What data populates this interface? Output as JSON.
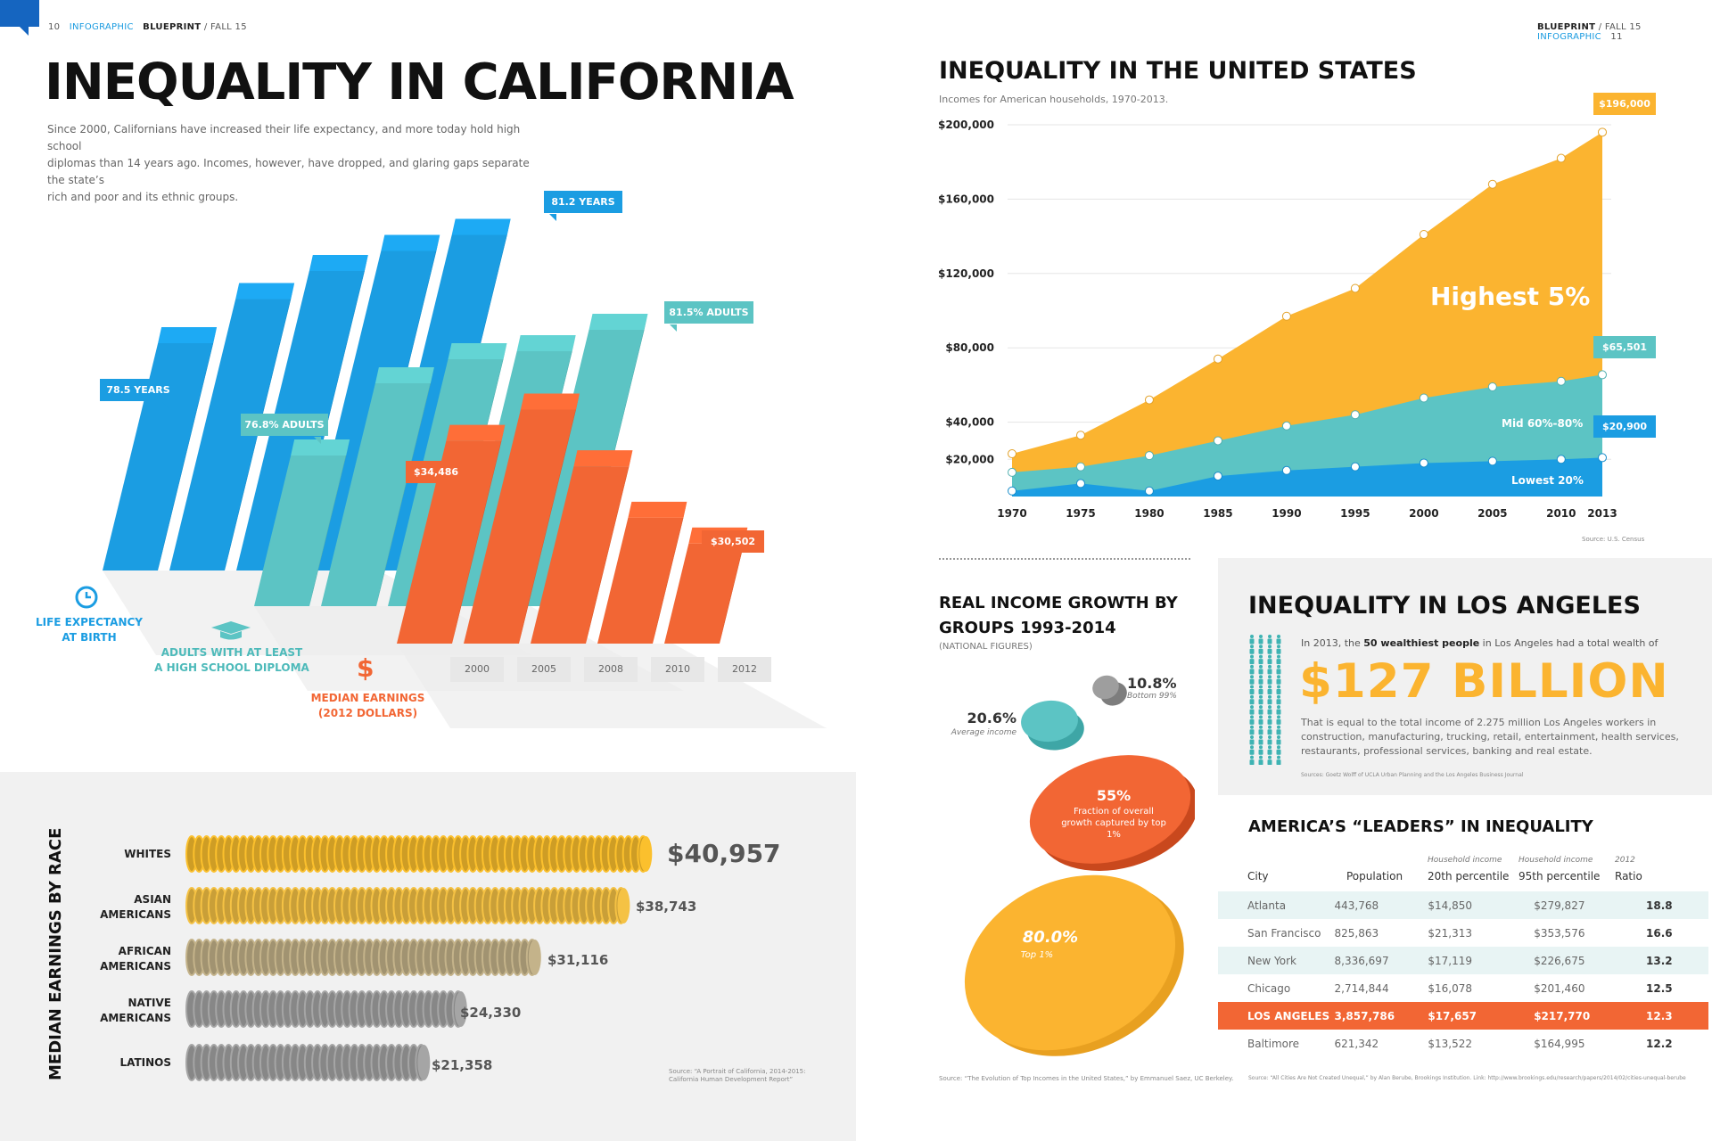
{
  "left_header": {
    "page": "10",
    "section": "INFOGRAPHIC",
    "mag": "BLUEPRINT",
    "issue": "/ FALL 15"
  },
  "right_header": {
    "mag": "BLUEPRINT",
    "issue": "/ FALL 15",
    "section": "INFOGRAPHIC",
    "page": "11"
  },
  "ca": {
    "title": "INEQUALITY IN CALIFORNIA",
    "intro_1": "Since 2000, Californians have increased their life expectancy, and more today hold high school",
    "intro_2": "diplomas than 14 years ago. Incomes, however, have dropped, and glaring gaps separate the state’s",
    "intro_3": "rich and poor and its ethnic groups.",
    "callouts": {
      "life_first": "78.5 YEARS",
      "life_last": "81.2 YEARS",
      "hs_first": "76.8% ADULTS",
      "hs_last": "81.5% ADULTS",
      "earn_first": "$34,486",
      "earn_last": "$30,502"
    },
    "legend": {
      "life": [
        "LIFE EXPECTANCY",
        "AT BIRTH"
      ],
      "hs": [
        "ADULTS WITH AT LEAST",
        "A HIGH SCHOOL DIPLOMA"
      ],
      "earn": [
        "MEDIAN EARNINGS",
        "(2012 DOLLARS)"
      ]
    },
    "years": [
      "2000",
      "2005",
      "2008",
      "2010",
      "2012"
    ]
  },
  "race": {
    "title": "MEDIAN EARNINGS BY RACE",
    "rows": [
      {
        "label": [
          "WHITES"
        ],
        "value": "$40,957"
      },
      {
        "label": [
          "ASIAN",
          "AMERICANS"
        ],
        "value": "$38,743"
      },
      {
        "label": [
          "AFRICAN",
          "AMERICANS"
        ],
        "value": "$31,116"
      },
      {
        "label": [
          "NATIVE",
          "AMERICANS"
        ],
        "value": "$24,330"
      },
      {
        "label": [
          "LATINOS"
        ],
        "value": "$21,358"
      }
    ],
    "source": [
      "Source: “A Portrait of California, 2014-2015:",
      "California Human Development Report”"
    ]
  },
  "us": {
    "title": "INEQUALITY IN THE UNITED STATES",
    "subtitle": "Incomes for American households, 1970-2013.",
    "source": "Source: U.S. Census",
    "labels": {
      "top": "Highest 5%",
      "mid": "Mid 60%-80%",
      "low": "Lowest 20%"
    },
    "callouts": {
      "top": "$196,000",
      "mid": "$65,501",
      "low": "$20,900"
    }
  },
  "growth": {
    "title_1": "REAL INCOME GROWTH BY",
    "title_2": "GROUPS 1993-2014",
    "subtitle": "(NATIONAL FIGURES)",
    "items": [
      {
        "value": "10.8%",
        "label": "Bottom 99%"
      },
      {
        "value": "20.6%",
        "label": "Average income"
      },
      {
        "value": "55%",
        "label": "Fraction of overall growth captured by top 1%"
      },
      {
        "value": "80.0%",
        "label": "Top 1%"
      }
    ],
    "source": "Source: “The Evolution of Top Incomes in the United States,” by Emmanuel Saez, UC Berkeley."
  },
  "la": {
    "title": "INEQUALITY IN LOS ANGELES",
    "line_pre": "In 2013, the",
    "line_bold": "50 wealthiest people",
    "line_post": "in Los Angeles had a total wealth of",
    "big": "$127 BILLION",
    "desc_1": "That is equal to the total income of 2.275 million Los Angeles workers in",
    "desc_2": "construction, manufacturing, trucking, retail, entertainment, health services,",
    "desc_3": "restaurants, professional services, banking and real estate.",
    "source": "Sources: Goetz Wolff of UCLA Urban Planning and the Los Angeles Business Journal"
  },
  "leaders": {
    "title": "AMERICA’S “LEADERS” IN INEQUALITY",
    "headers": {
      "city": "City",
      "pop": "Population",
      "p20_top": "Household income",
      "p20": "20th percentile",
      "p95_top": "Household income",
      "p95": "95th percentile",
      "ratio_top": "2012",
      "ratio": "Ratio"
    },
    "rows": [
      [
        "Atlanta",
        "443,768",
        "$14,850",
        "$279,827",
        "18.8"
      ],
      [
        "San Francisco",
        "825,863",
        "$21,313",
        "$353,576",
        "16.6"
      ],
      [
        "New York",
        "8,336,697",
        "$17,119",
        "$226,675",
        "13.2"
      ],
      [
        "Chicago",
        "2,714,844",
        "$16,078",
        "$201,460",
        "12.5"
      ],
      [
        "LOS ANGELES",
        "3,857,786",
        "$17,657",
        "$217,770",
        "12.3"
      ],
      [
        "Baltimore",
        "621,342",
        "$13,522",
        "$164,995",
        "12.2"
      ]
    ],
    "source": "Source: “All Cities Are Not Created Unequal,” by Alan Berube, Brookings Institution. Link: http://www.brookings.edu/research/papers/2014/02/cities-unequal-berube"
  },
  "chart_data": [
    {
      "type": "bar",
      "categories": [
        "2000",
        "2005",
        "2008",
        "2010",
        "2012"
      ],
      "series": [
        {
          "name": "LIFE EXPECTANCY AT BIRTH",
          "values": [
            78.5,
            79.6,
            80.3,
            80.8,
            81.2
          ],
          "color": "#1b9de2"
        },
        {
          "name": "ADULTS WITH AT LEAST A HIGH SCHOOL DIPLOMA",
          "values": [
            76.8,
            79.5,
            80.4,
            80.7,
            81.5
          ],
          "color": "#5cc4c4"
        },
        {
          "name": "MEDIAN EARNINGS (2012 DOLLARS)",
          "values": [
            34486,
            35700,
            33500,
            31500,
            30502
          ],
          "color": "#f26634"
        }
      ]
    },
    {
      "type": "bar",
      "title": "MEDIAN EARNINGS BY RACE",
      "categories": [
        "WHITES",
        "ASIAN AMERICANS",
        "AFRICAN AMERICANS",
        "NATIVE AMERICANS",
        "LATINOS"
      ],
      "values": [
        40957,
        38743,
        31116,
        24330,
        21358
      ]
    },
    {
      "type": "area",
      "title": "INEQUALITY IN THE UNITED STATES",
      "x": [
        1970,
        1975,
        1980,
        1985,
        1990,
        1995,
        2000,
        2005,
        2010,
        2013
      ],
      "xticks": [
        "1970",
        "1975",
        "1980",
        "1985",
        "1990",
        "1995",
        "2000",
        "2005",
        "2010",
        "2013"
      ],
      "yticks": [
        "$20,000",
        "$40,000",
        "$80,000",
        "$120,000",
        "$160,000",
        "$200,000"
      ],
      "ytick_values": [
        20000,
        40000,
        80000,
        120000,
        160000,
        200000
      ],
      "ylim": [
        0,
        200000
      ],
      "series": [
        {
          "name": "Highest 5%",
          "values": [
            23000,
            33000,
            52000,
            74000,
            97000,
            112000,
            141000,
            168000,
            182000,
            196000
          ],
          "color": "#fbb430"
        },
        {
          "name": "Mid 60%-80%",
          "values": [
            13000,
            16000,
            22000,
            30000,
            38000,
            44000,
            53000,
            59000,
            62000,
            65501
          ],
          "color": "#5cc4c4"
        },
        {
          "name": "Lowest 20%",
          "values": [
            3000,
            7000,
            3000,
            11000,
            14000,
            16000,
            18000,
            19000,
            20000,
            20900
          ],
          "color": "#1b9de2"
        }
      ]
    },
    {
      "type": "bubble",
      "title": "REAL INCOME GROWTH BY GROUPS 1993-2014",
      "categories": [
        "Bottom 99%",
        "Average income",
        "Fraction of overall growth captured by top 1%",
        "Top 1%"
      ],
      "values": [
        10.8,
        20.6,
        55,
        80.0
      ]
    }
  ]
}
